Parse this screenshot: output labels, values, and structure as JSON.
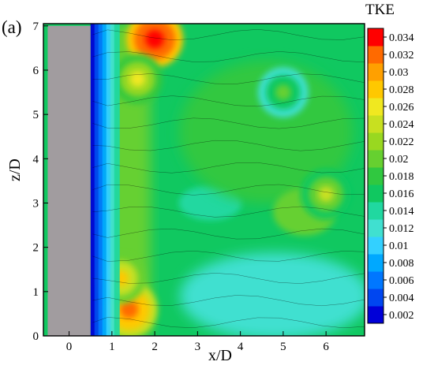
{
  "panel_label": "(a)",
  "colors": {
    "cylinder": "#a19c9f",
    "axes": "#000000",
    "contour_line": "#000000"
  },
  "chart_data": {
    "type": "heatmap",
    "title": "",
    "xlabel": "x/D",
    "ylabel": "z/D",
    "xlim": [
      -0.6,
      6.9
    ],
    "ylim": [
      0,
      7.05
    ],
    "x_ticks": [
      0,
      1,
      2,
      3,
      4,
      5,
      6
    ],
    "y_ticks": [
      0,
      1,
      2,
      3,
      4,
      5,
      6,
      7
    ],
    "grid": false,
    "colorbar": {
      "title": "TKE",
      "placement": "right",
      "levels": [
        "0.002",
        "0.004",
        "0.006",
        "0.008",
        "0.01",
        "0.012",
        "0.014",
        "0.016",
        "0.018",
        "0.02",
        "0.022",
        "0.024",
        "0.026",
        "0.028",
        "0.03",
        "0.032",
        "0.034"
      ],
      "colors": [
        "#0000d8",
        "#0046f0",
        "#0077ff",
        "#00a8ff",
        "#33d0ff",
        "#40e0d0",
        "#20d8a0",
        "#10c860",
        "#30c840",
        "#66d030",
        "#99d820",
        "#c8e020",
        "#f0e820",
        "#ffc800",
        "#ffa000",
        "#ff6a00",
        "#ff0000"
      ]
    },
    "obstacle": {
      "label": "cylinder",
      "x_range": [
        -0.5,
        0.5
      ],
      "z_range": [
        0,
        7
      ]
    },
    "field_description_points": [
      {
        "x": 0.55,
        "z": 3.5,
        "tke": 0.002
      },
      {
        "x": 0.8,
        "z": 3.5,
        "tke": 0.008
      },
      {
        "x": 2.0,
        "z": 6.7,
        "tke": 0.034
      },
      {
        "x": 1.4,
        "z": 0.6,
        "tke": 0.032
      },
      {
        "x": 1.2,
        "z": 1.3,
        "tke": 0.028
      },
      {
        "x": 1.6,
        "z": 5.8,
        "tke": 0.026
      },
      {
        "x": 3.0,
        "z": 3.2,
        "tke": 0.015
      },
      {
        "x": 4.5,
        "z": 0.5,
        "tke": 0.012
      },
      {
        "x": 6.0,
        "z": 3.2,
        "tke": 0.024
      },
      {
        "x": 5.0,
        "z": 5.5,
        "tke": 0.02
      },
      {
        "x": 4.0,
        "z": 4.0,
        "tke": 0.018
      }
    ]
  }
}
